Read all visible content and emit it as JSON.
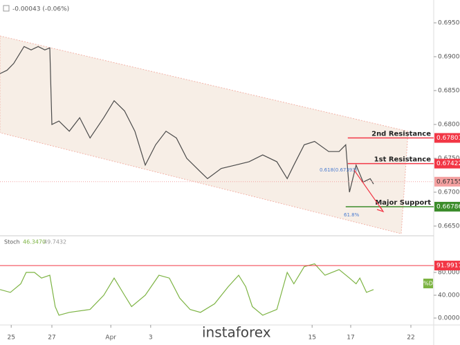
{
  "header": {
    "change": "-0.00043 (-0.06%)"
  },
  "watermark": "instaforex",
  "chart_data": [
    {
      "type": "line",
      "color": "#4a4a4a",
      "x": [
        0,
        1.7,
        3.3,
        5.8,
        7.5,
        9.2,
        10.8,
        12,
        12.5,
        14.2,
        16.7,
        19.2,
        21.7,
        25,
        27.5,
        30,
        32.5,
        35,
        37.5,
        40,
        42.5,
        45,
        48.3,
        50,
        53.3,
        56.7,
        60,
        63.3,
        66.7,
        69.2,
        70.8,
        73.3,
        75.8,
        79.2,
        81.7,
        83.3,
        84.2,
        85.8,
        87.5,
        89.2,
        90
      ],
      "values": [
        0.6875,
        0.688,
        0.689,
        0.6915,
        0.691,
        0.6915,
        0.691,
        0.6913,
        0.68,
        0.6805,
        0.679,
        0.681,
        0.678,
        0.681,
        0.6835,
        0.682,
        0.679,
        0.674,
        0.677,
        0.679,
        0.678,
        0.675,
        0.673,
        0.672,
        0.6735,
        0.674,
        0.6745,
        0.6755,
        0.6745,
        0.672,
        0.674,
        0.677,
        0.6775,
        0.676,
        0.676,
        0.677,
        0.67,
        0.674,
        0.6715,
        0.672,
        0.6712
      ],
      "xlim": [
        0,
        104.5
      ],
      "ylim": [
        0.66367,
        0.69837
      ],
      "yticks": [
        {
          "value": 0.695,
          "label": "0.69500"
        },
        {
          "value": 0.69,
          "label": "0.69000"
        },
        {
          "value": 0.685,
          "label": "0.68500"
        },
        {
          "value": 0.68,
          "label": "0.68000"
        },
        {
          "value": 0.675,
          "label": "0.67500"
        },
        {
          "value": 0.67,
          "label": "0.67000"
        },
        {
          "value": 0.665,
          "label": "0.66500"
        }
      ],
      "levels": [
        {
          "label": "2nd Resistance",
          "value": 0.67801,
          "color": "#f23645",
          "start": 83.8
        },
        {
          "label": "1st Resistance",
          "value": 0.67422,
          "color": "#f23645",
          "start": 83.8
        },
        {
          "label": "Major Support",
          "value": 0.66786,
          "color": "#3b8c2a",
          "start": 83.3
        }
      ],
      "current": {
        "value": 0.67155,
        "color": "#f4a0a0"
      },
      "annotations": [
        "0.618(0.67393)",
        "61.8%"
      ]
    },
    {
      "type": "line",
      "title": "Stoch",
      "color": "#7cb342",
      "legend_values": [
        {
          "value": 46.347,
          "label": "46.3470"
        },
        49.7432
      ],
      "x": [
        0,
        2.5,
        5,
        6.3,
        8.3,
        10,
        12,
        13.3,
        14.2,
        16.7,
        21.7,
        25,
        27.5,
        30,
        31.7,
        35,
        38.3,
        40.8,
        43.3,
        45.8,
        48.3,
        51.7,
        55,
        57.5,
        59.2,
        60.8,
        63.3,
        66.7,
        69.2,
        70.8,
        73.3,
        75.8,
        78.3,
        81.7,
        84.2,
        85.8,
        86.7,
        88.3,
        90
      ],
      "values": [
        50,
        45,
        60,
        80,
        80,
        70,
        75,
        20,
        5,
        10,
        15,
        40,
        70,
        40,
        20,
        40,
        75,
        70,
        35,
        15,
        10,
        25,
        55,
        75,
        55,
        20,
        5,
        15,
        80,
        60,
        90,
        95,
        75,
        85,
        70,
        60,
        70,
        45,
        50
      ],
      "xlim": [
        0,
        104.5
      ],
      "ylim": [
        -12.1,
        143
      ],
      "yticks": [
        {
          "value": 80,
          "label": "80.0000"
        },
        {
          "value": 40,
          "label": "40.0000"
        },
        {
          "value": 0,
          "label": "0.0000"
        }
      ],
      "level": {
        "value": 91.9917,
        "color": "#f23645"
      },
      "badge": "%D",
      "xticks": [
        {
          "value": 2.7,
          "label": "25"
        },
        {
          "value": 12.5,
          "label": "27"
        },
        {
          "value": 26.7,
          "label": "Apr"
        },
        {
          "value": 36.3,
          "label": "3"
        },
        {
          "value": 75.2,
          "label": "15"
        },
        {
          "value": 84.5,
          "label": "17"
        },
        {
          "value": 99,
          "label": "22"
        }
      ]
    }
  ]
}
